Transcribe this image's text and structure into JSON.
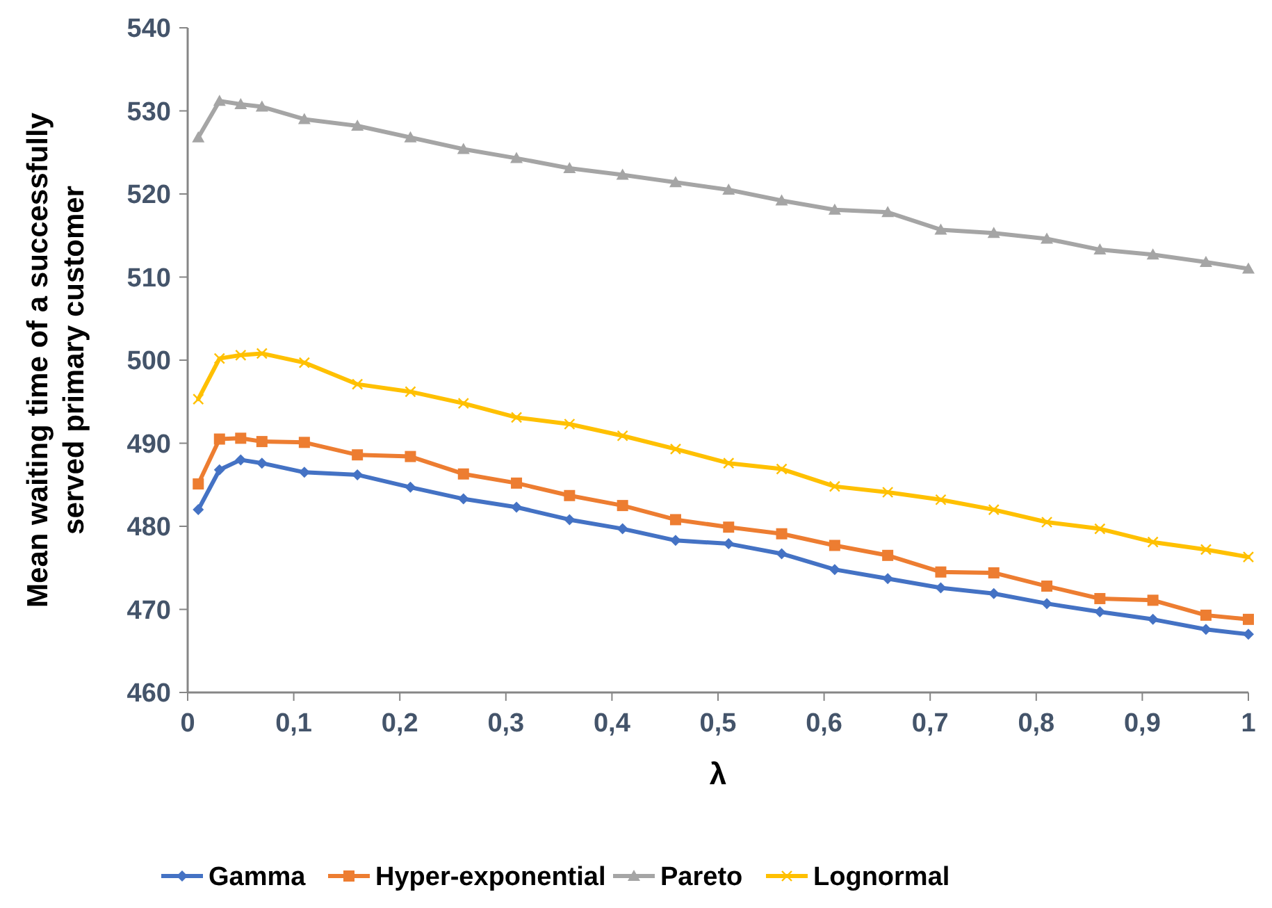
{
  "chart_data": {
    "type": "line",
    "xlabel": "λ",
    "ylabel": "Mean waiting time of a successfully served primary customer",
    "x": [
      0.01,
      0.03,
      0.05,
      0.07,
      0.11,
      0.16,
      0.21,
      0.26,
      0.31,
      0.36,
      0.41,
      0.46,
      0.51,
      0.56,
      0.61,
      0.66,
      0.71,
      0.76,
      0.81,
      0.86,
      0.91,
      0.96,
      1
    ],
    "xlim": [
      0,
      1
    ],
    "xticks": [
      {
        "value": 0,
        "label": "0"
      },
      {
        "value": 0.1,
        "label": "0,1"
      },
      {
        "value": 0.2,
        "label": "0,2"
      },
      {
        "value": 0.3,
        "label": "0,3"
      },
      {
        "value": 0.4,
        "label": "0,4"
      },
      {
        "value": 0.5,
        "label": "0,5"
      },
      {
        "value": 0.6,
        "label": "0,6"
      },
      {
        "value": 0.7,
        "label": "0,7"
      },
      {
        "value": 0.8,
        "label": "0,8"
      },
      {
        "value": 0.9,
        "label": "0,9"
      },
      {
        "value": 1,
        "label": "1"
      }
    ],
    "ylim": [
      460,
      540
    ],
    "yticks": [
      460,
      470,
      480,
      490,
      500,
      510,
      520,
      530,
      540
    ],
    "grid": false,
    "legend": "bottom",
    "line_style": "solid",
    "series": [
      {
        "name": "Gamma",
        "color": "#4472c4",
        "marker": "diamond",
        "values": [
          482.0,
          486.8,
          488.0,
          487.6,
          486.5,
          486.2,
          484.7,
          483.3,
          482.3,
          480.8,
          479.7,
          478.3,
          477.9,
          476.7,
          474.8,
          473.7,
          472.6,
          471.9,
          470.7,
          469.7,
          468.8,
          467.6,
          467.0
        ]
      },
      {
        "name": "Hyper-exponential",
        "color": "#ed7d31",
        "marker": "square",
        "values": [
          485.1,
          490.5,
          490.6,
          490.2,
          490.1,
          488.6,
          488.4,
          486.3,
          485.2,
          483.7,
          482.5,
          480.8,
          479.9,
          479.1,
          477.7,
          476.5,
          474.5,
          474.4,
          472.8,
          471.3,
          471.1,
          469.3,
          468.8
        ]
      },
      {
        "name": "Pareto",
        "color": "#a5a5a5",
        "marker": "triangle",
        "values": [
          526.8,
          531.2,
          530.8,
          530.5,
          529.0,
          528.2,
          526.8,
          525.4,
          524.3,
          523.1,
          522.3,
          521.4,
          520.5,
          519.2,
          518.1,
          517.8,
          515.7,
          515.3,
          514.6,
          513.3,
          512.7,
          511.8,
          511.0
        ]
      },
      {
        "name": "Lognormal",
        "color": "#ffc000",
        "marker": "cross",
        "values": [
          495.3,
          500.2,
          500.6,
          500.8,
          499.7,
          497.1,
          496.2,
          494.8,
          493.1,
          492.3,
          490.9,
          489.3,
          487.6,
          486.9,
          484.8,
          484.1,
          483.2,
          482.0,
          480.5,
          479.7,
          478.1,
          477.2,
          476.3
        ]
      }
    ]
  }
}
